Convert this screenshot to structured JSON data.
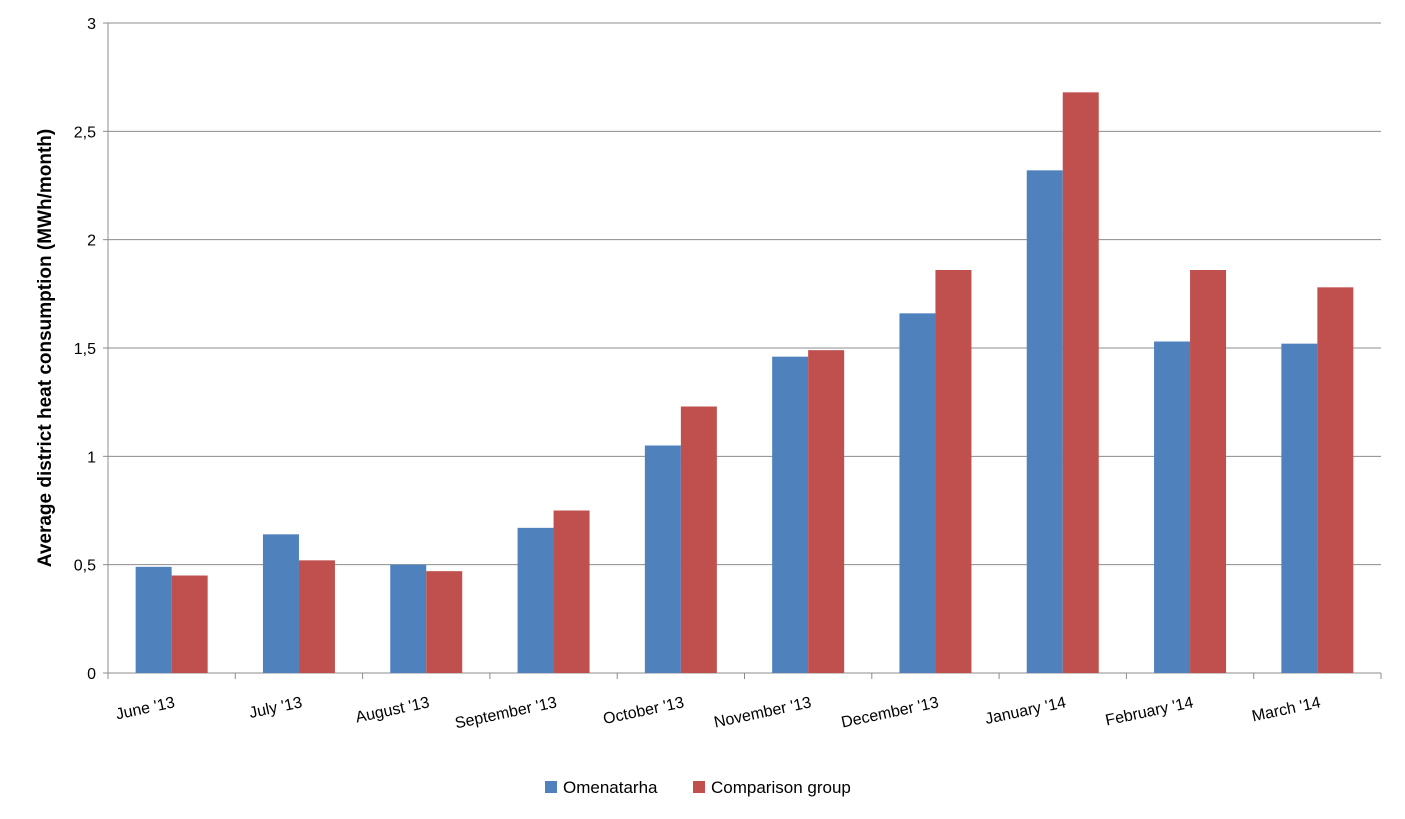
{
  "chart_data": {
    "type": "bar",
    "title": "",
    "xlabel": "",
    "ylabel": "Average district heat consumption (MWh/month)",
    "ylim": [
      0,
      3
    ],
    "yticks": [
      0,
      0.5,
      1,
      1.5,
      2,
      2.5,
      3
    ],
    "ytick_labels": [
      "0",
      "0,5",
      "1",
      "1,5",
      "2",
      "2,5",
      "3"
    ],
    "grid": true,
    "legend_position": "bottom",
    "categories": [
      "June '13",
      "July '13",
      "August '13",
      "September '13",
      "October '13",
      "November '13",
      "December '13",
      "January '14",
      "February '14",
      "March '14"
    ],
    "series": [
      {
        "name": "Omenatarha",
        "color": "#4F81BD",
        "values": [
          0.49,
          0.64,
          0.5,
          0.67,
          1.05,
          1.46,
          1.66,
          2.32,
          1.53,
          1.52
        ]
      },
      {
        "name": "Comparison group",
        "color": "#C0504D",
        "values": [
          0.45,
          0.52,
          0.47,
          0.75,
          1.23,
          1.49,
          1.86,
          2.68,
          1.86,
          1.78
        ]
      }
    ]
  }
}
